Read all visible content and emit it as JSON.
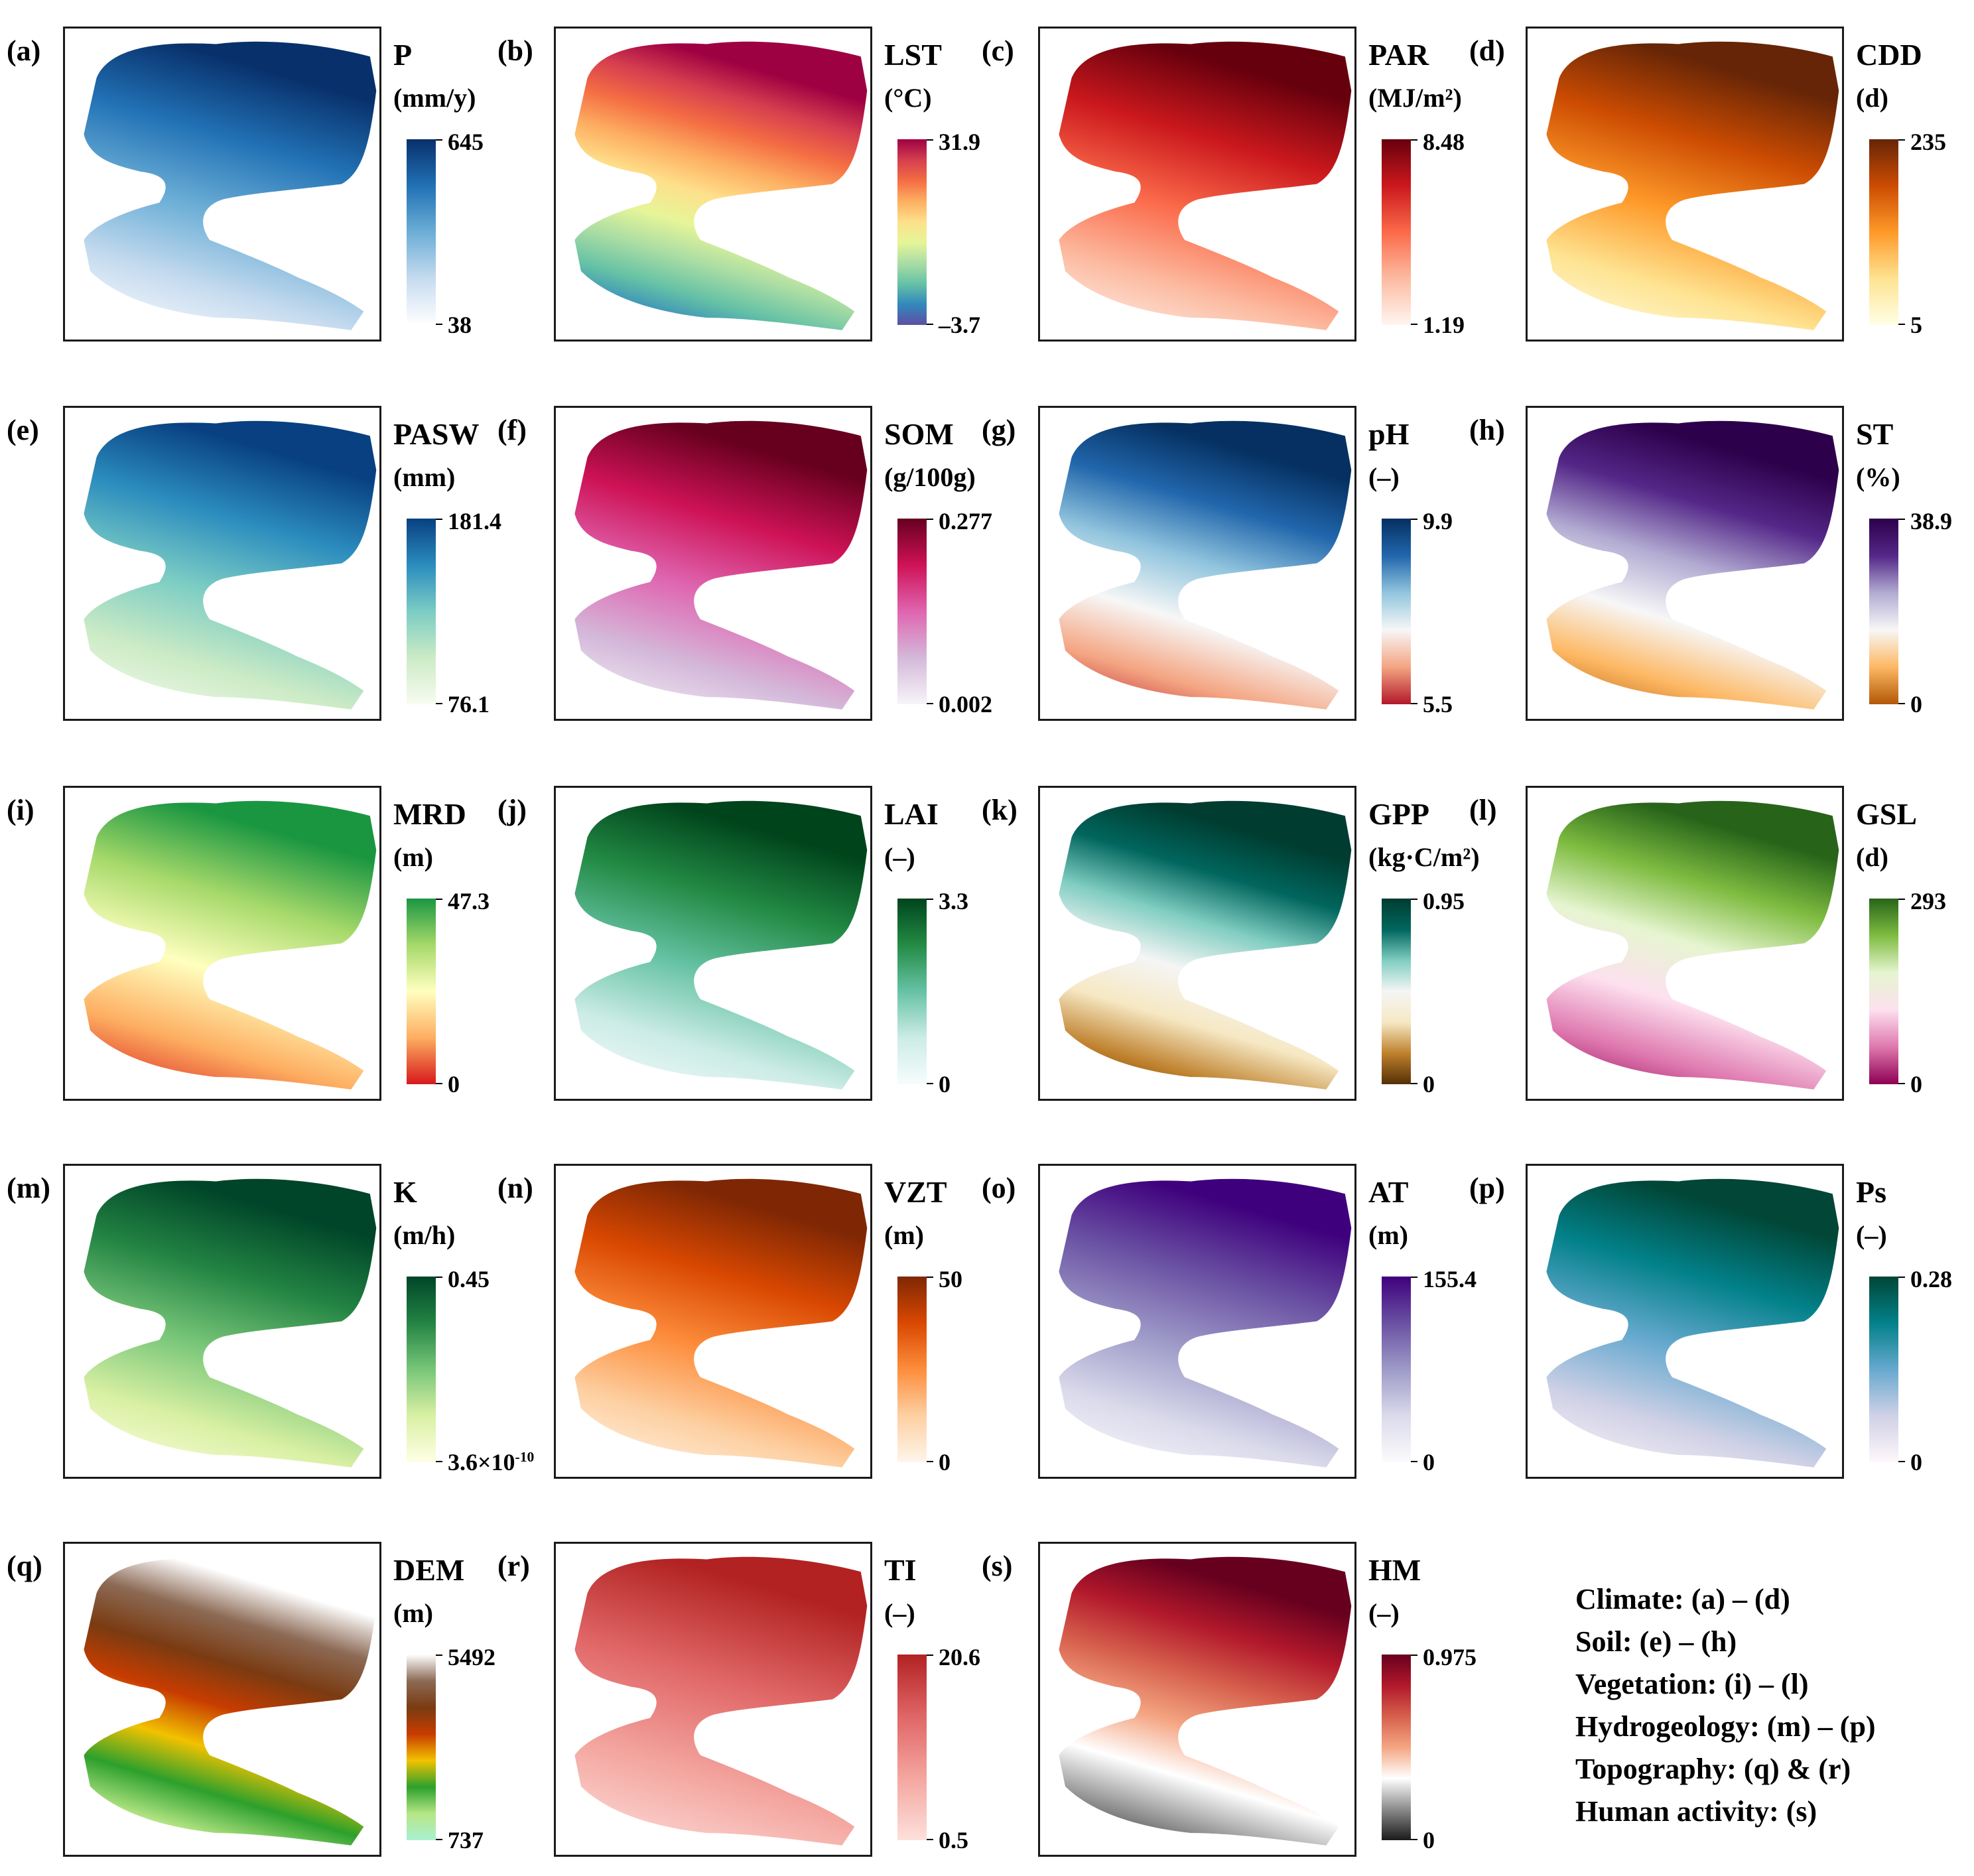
{
  "panels": [
    {
      "label": "(a)",
      "name": "P",
      "unit": "(mm/y)",
      "max": "645",
      "min": "38",
      "colors": [
        "#ffffff",
        "#c6dbef",
        "#6baed6",
        "#2171b5",
        "#08306b"
      ]
    },
    {
      "label": "(b)",
      "name": "LST",
      "unit": "(°C)",
      "max": "31.9",
      "min": "–3.7",
      "colors": [
        "#5e4fa2",
        "#3288bd",
        "#66c2a5",
        "#abdda4",
        "#e6f598",
        "#fee08b",
        "#fdae61",
        "#f46d43",
        "#d53e4f",
        "#9e0142"
      ]
    },
    {
      "label": "(c)",
      "name": "PAR",
      "unit": "(MJ/m²)",
      "max": "8.48",
      "min": "1.19",
      "colors": [
        "#fff5f0",
        "#fcbba1",
        "#fb6a4a",
        "#cb181d",
        "#67000d"
      ]
    },
    {
      "label": "(d)",
      "name": "CDD",
      "unit": "(d)",
      "max": "235",
      "min": "5",
      "colors": [
        "#ffffe5",
        "#fee391",
        "#fe9929",
        "#cc4c02",
        "#662506"
      ]
    },
    {
      "label": "(e)",
      "name": "PASW",
      "unit": "(mm)",
      "max": "181.4",
      "min": "76.1",
      "colors": [
        "#f7fcf0",
        "#ccebc5",
        "#7bccc4",
        "#2b8cbe",
        "#084081"
      ]
    },
    {
      "label": "(f)",
      "name": "SOM",
      "unit": "(g/100g)",
      "max": "0.277",
      "min": "0.002",
      "colors": [
        "#f7f4f9",
        "#d4b9da",
        "#df65b0",
        "#ce1256",
        "#67001f"
      ]
    },
    {
      "label": "(g)",
      "name": "pH",
      "unit": "(–)",
      "max": "9.9",
      "min": "5.5",
      "colors": [
        "#b2182b",
        "#f4a582",
        "#f7f7f7",
        "#92c5de",
        "#2166ac",
        "#053061"
      ]
    },
    {
      "label": "(h)",
      "name": "ST",
      "unit": "(%)",
      "max": "38.9",
      "min": "0",
      "colors": [
        "#b35806",
        "#fdb863",
        "#f7f7f7",
        "#b2abd2",
        "#542788",
        "#2d004b"
      ]
    },
    {
      "label": "(i)",
      "name": "MRD",
      "unit": "(m)",
      "max": "47.3",
      "min": "0",
      "colors": [
        "#d7191c",
        "#fdae61",
        "#ffffbf",
        "#a6d96a",
        "#1a9641"
      ]
    },
    {
      "label": "(j)",
      "name": "LAI",
      "unit": "(–)",
      "max": "3.3",
      "min": "0",
      "colors": [
        "#f7fcfd",
        "#ccece6",
        "#66c2a4",
        "#238b45",
        "#00441b"
      ]
    },
    {
      "label": "(k)",
      "name": "GPP",
      "unit": "(kg·C/m²)",
      "max": "0.95",
      "min": "0",
      "colors": [
        "#543005",
        "#bf812d",
        "#f6e8c3",
        "#f5f5f5",
        "#80cdc1",
        "#01665e",
        "#003c30"
      ]
    },
    {
      "label": "(l)",
      "name": "GSL",
      "unit": "(d)",
      "max": "293",
      "min": "0",
      "colors": [
        "#8e0152",
        "#de77ae",
        "#fde0ef",
        "#e6f5d0",
        "#7fbc41",
        "#276419"
      ]
    },
    {
      "label": "(m)",
      "name": "K",
      "unit": "(m/h)",
      "max": "0.45",
      "min": "3.6×10",
      "min_exp": "-10",
      "colors": [
        "#ffffe5",
        "#d9f0a3",
        "#78c679",
        "#238443",
        "#004529"
      ]
    },
    {
      "label": "(n)",
      "name": "VZT",
      "unit": "(m)",
      "max": "50",
      "min": "0",
      "colors": [
        "#fff5eb",
        "#fdd0a2",
        "#fd8d3c",
        "#d94801",
        "#7f2704"
      ]
    },
    {
      "label": "(o)",
      "name": "AT",
      "unit": "(m)",
      "max": "155.4",
      "min": "0",
      "colors": [
        "#fcfbfd",
        "#dadaeb",
        "#9e9ac8",
        "#6a51a3",
        "#3f007d"
      ]
    },
    {
      "label": "(p)",
      "name": "Ps",
      "unit": "(–)",
      "max": "0.28",
      "min": "0",
      "colors": [
        "#fff7fb",
        "#d0d1e6",
        "#67a9cf",
        "#02818a",
        "#014636"
      ]
    },
    {
      "label": "(q)",
      "name": "DEM",
      "unit": "(m)",
      "max": "5492",
      "min": "737",
      "colors": [
        "#aaf0d1",
        "#b6e685",
        "#2ca02c",
        "#f2c200",
        "#c83c00",
        "#7a3b12",
        "#8c6a55",
        "#ffffff"
      ]
    },
    {
      "label": "(r)",
      "name": "TI",
      "unit": "(–)",
      "max": "20.6",
      "min": "0.5",
      "colors": [
        "#fde0dc",
        "#f4a6a0",
        "#e06666",
        "#b22222"
      ]
    },
    {
      "label": "(s)",
      "name": "HM",
      "unit": "(–)",
      "max": "0.975",
      "min": "0",
      "colors": [
        "#1a1a1a",
        "#8c8c8c",
        "#ffffff",
        "#f4a582",
        "#d6604d",
        "#b2182b",
        "#67001f"
      ]
    }
  ],
  "legend": [
    "Climate: (a) – (d)",
    "Soil: (e) – (h)",
    "Vegetation: (i) – (l)",
    "Hydrogeology: (m) – (p)",
    "Topography: (q) & (r)",
    "Human activity: (s)"
  ]
}
